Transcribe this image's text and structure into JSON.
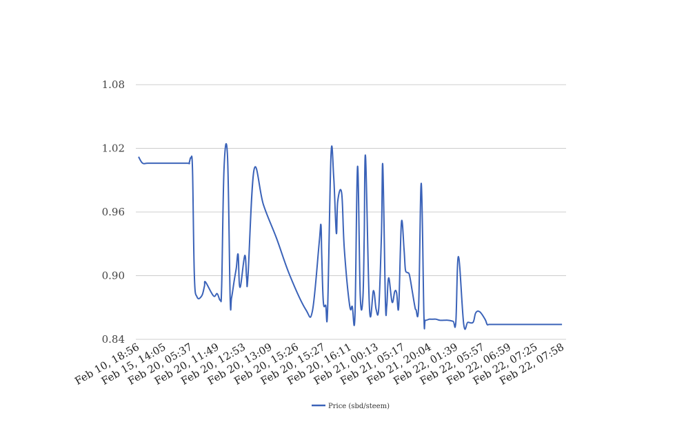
{
  "chart_data": {
    "type": "line",
    "title": "",
    "xlabel": "",
    "ylabel": "",
    "ylim": [
      0.84,
      1.08
    ],
    "yticks": [
      "0.84",
      "0.90",
      "0.96",
      "1.02",
      "1.08"
    ],
    "grid": "horizontal",
    "legend_position": "bottom-center",
    "categories": [
      "Feb 10, 18:56",
      "Feb 15, 14:05",
      "Feb 20, 05:37",
      "Feb 20, 11:49",
      "Feb 20, 12:53",
      "Feb 20, 13:09",
      "Feb 20, 15:26",
      "Feb 20, 15:27",
      "Feb 20, 16:11",
      "Feb 21, 00:13",
      "Feb 21, 05:17",
      "Feb 21, 20:04",
      "Feb 22, 01:39",
      "Feb 22, 05:57",
      "Feb 22, 06:59",
      "Feb 22, 07:25",
      "Feb 22, 07:58"
    ],
    "series": [
      {
        "name": "Price (sbd/steem)",
        "color": "#3a62b8",
        "x": [
          0,
          0.15,
          0.35,
          0.9,
          1.82,
          1.9,
          1.97,
          2.03,
          2.1,
          2.2,
          2.38,
          2.48,
          2.52,
          2.82,
          2.96,
          3.08,
          3.13,
          3.22,
          3.35,
          3.45,
          3.5,
          3.6,
          3.68,
          3.75,
          3.82,
          4.0,
          4.07,
          4.12,
          4.35,
          4.7,
          5.2,
          5.7,
          6.3,
          6.55,
          6.8,
          6.87,
          6.9,
          6.96,
          7.05,
          7.12,
          7.25,
          7.35,
          7.45,
          7.5,
          7.65,
          7.75,
          7.95,
          8.05,
          8.15,
          8.25,
          8.35,
          8.45,
          8.5,
          8.55,
          8.7,
          8.85,
          8.95,
          9.05,
          9.15,
          9.2,
          9.3,
          9.35,
          9.42,
          9.55,
          9.65,
          9.72,
          9.8,
          9.9,
          10.0,
          10.05,
          10.12,
          10.2,
          10.3,
          10.4,
          10.45,
          10.55,
          10.65,
          10.75,
          10.8,
          10.95,
          11.0,
          11.1,
          11.2,
          11.35,
          11.5,
          11.65,
          11.85,
          11.95,
          12.05,
          12.25,
          12.4,
          12.6,
          12.7,
          12.85,
          13.05,
          13.13,
          13.2,
          13.35,
          13.5,
          13.7,
          14.0,
          14.15,
          14.3,
          14.42,
          14.5,
          14.56,
          14.62,
          14.75,
          14.95,
          15.1,
          15.2,
          15.4,
          15.6,
          15.75,
          15.95
        ],
        "values": [
          1.012,
          1.006,
          1.006,
          1.006,
          1.006,
          1.006,
          1.011,
          1.0,
          0.9,
          0.88,
          0.881,
          0.89,
          0.894,
          0.881,
          0.883,
          0.877,
          0.89,
          1.002,
          1.012,
          0.879,
          0.879,
          0.895,
          0.907,
          0.92,
          0.889,
          0.919,
          0.898,
          0.899,
          1.0,
          0.967,
          0.935,
          0.9,
          0.868,
          0.867,
          0.93,
          0.948,
          0.918,
          0.875,
          0.872,
          0.867,
          1.014,
          0.993,
          0.94,
          0.97,
          0.978,
          0.925,
          0.872,
          0.871,
          0.862,
          1.003,
          0.881,
          0.879,
          0.938,
          1.012,
          0.868,
          0.886,
          0.868,
          0.87,
          0.94,
          1.004,
          0.875,
          0.872,
          0.898,
          0.875,
          0.885,
          0.884,
          0.871,
          0.95,
          0.925,
          0.906,
          0.903,
          0.901,
          0.887,
          0.872,
          0.868,
          0.872,
          0.987,
          0.861,
          0.858,
          0.859,
          0.859,
          0.859,
          0.859,
          0.858,
          0.858,
          0.858,
          0.857,
          0.856,
          0.918,
          0.854,
          0.856,
          0.856,
          0.865,
          0.866,
          0.859,
          0.854,
          0.854,
          0.854,
          0.854,
          0.854,
          0.854,
          0.854,
          0.854,
          0.854,
          0.854,
          0.854,
          0.854,
          0.854,
          0.854,
          0.854,
          0.854,
          0.854,
          0.854,
          0.854,
          0.854
        ]
      }
    ]
  }
}
